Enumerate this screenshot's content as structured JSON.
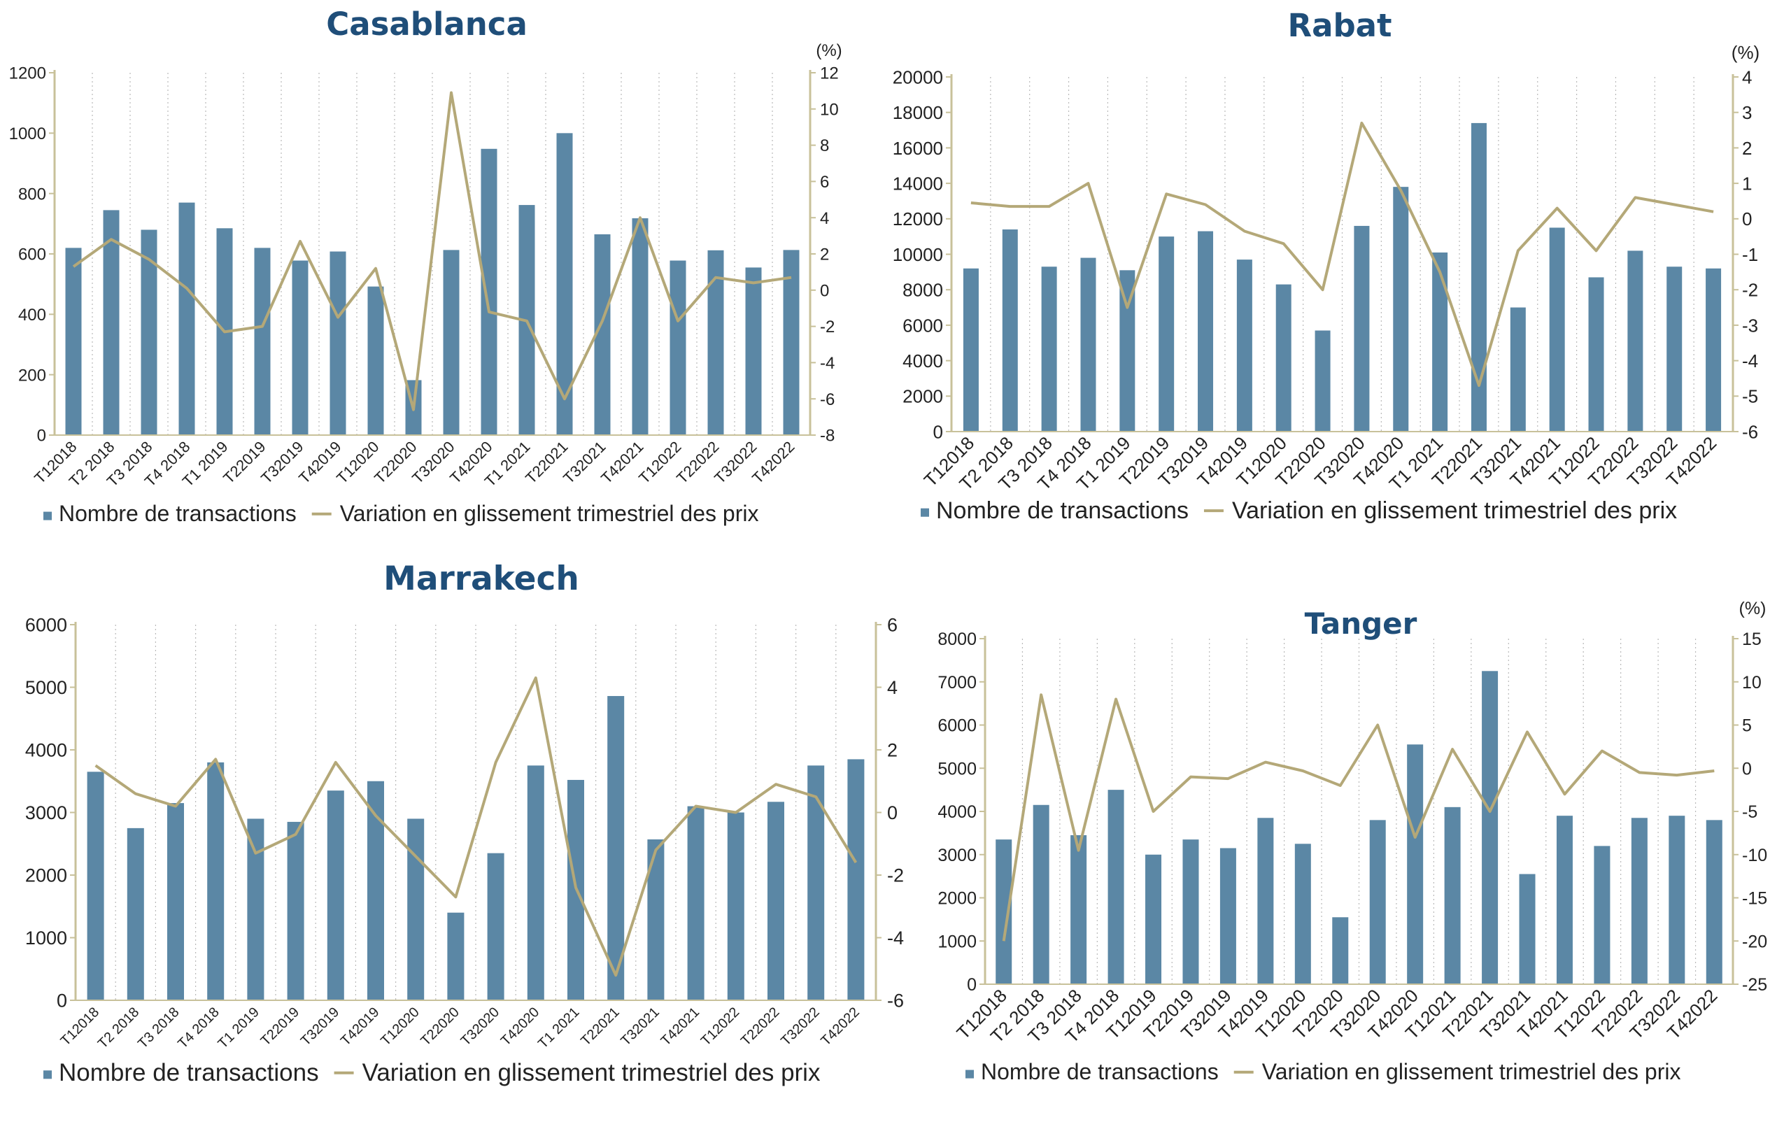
{
  "colors": {
    "bars": "#5b87a5",
    "line": "#b4a878",
    "axis": "#c8c19a",
    "grid": "#b9b9b9",
    "title": "#1f4e79"
  },
  "legend": {
    "bars": "Nombre de transactions",
    "line": "Variation en glissement trimestriel des prix"
  },
  "chart_data": [
    {
      "type": "bar",
      "title": "Casablanca",
      "categories": [
        "T12018",
        "T2 2018",
        "T3 2018",
        "T4 2018",
        "T1 2019",
        "T22019",
        "T32019",
        "T42019",
        "T12020",
        "T22020",
        "T32020",
        "T42020",
        "T1 2021",
        "T22021",
        "T32021",
        "T42021",
        "T12022",
        "T22022",
        "T32022",
        "T42022"
      ],
      "series": [
        {
          "name": "Nombre de transactions",
          "type": "bar",
          "axis": "left",
          "values": [
            620,
            745,
            680,
            770,
            685,
            620,
            578,
            608,
            492,
            182,
            613,
            948,
            762,
            1000,
            665,
            718,
            578,
            612,
            555,
            613
          ]
        },
        {
          "name": "Variation en glissement trimestriel des prix",
          "type": "line",
          "axis": "right",
          "values": [
            1.3,
            2.8,
            1.7,
            0.1,
            -2.3,
            -2.0,
            2.7,
            -1.5,
            1.2,
            -6.6,
            10.9,
            -1.2,
            -1.7,
            -6.0,
            -1.7,
            4.0,
            -1.7,
            0.7,
            0.4,
            0.7
          ]
        }
      ],
      "ylim": [
        0,
        1200
      ],
      "yticks": [
        "0",
        "200",
        "400",
        "600",
        "800",
        "1000",
        "1200"
      ],
      "y2lim": [
        -8,
        12
      ],
      "y2ticks": [
        "-8",
        "-6",
        "-4",
        "-2",
        "0",
        "2",
        "4",
        "6",
        "8",
        "10",
        "12"
      ],
      "y2unit": "(%)",
      "grid": true,
      "legend_position": "bottom"
    },
    {
      "type": "bar",
      "title": "Rabat",
      "categories": [
        "T12018",
        "T2 2018",
        "T3 2018",
        "T4 2018",
        "T1 2019",
        "T22019",
        "T32019",
        "T42019",
        "T12020",
        "T22020",
        "T32020",
        "T42020",
        "T1 2021",
        "T22021",
        "T32021",
        "T42021",
        "T12022",
        "T22022",
        "T32022",
        "T42022"
      ],
      "series": [
        {
          "name": "Nombre de transactions",
          "type": "bar",
          "axis": "left",
          "values": [
            9200,
            11400,
            9300,
            9800,
            9100,
            11000,
            11300,
            9700,
            8300,
            5700,
            11600,
            13800,
            10100,
            17400,
            7000,
            11500,
            8700,
            10200,
            9300,
            9200
          ]
        },
        {
          "name": "Variation en glissement trimestriel des prix",
          "type": "line",
          "axis": "right",
          "values": [
            0.45,
            0.35,
            0.35,
            1.0,
            -2.5,
            0.7,
            0.4,
            -0.35,
            -0.7,
            -2.0,
            2.7,
            0.8,
            -1.5,
            -4.7,
            -0.9,
            0.3,
            -0.9,
            0.6,
            0.4,
            0.2
          ]
        }
      ],
      "ylim": [
        0,
        20000
      ],
      "yticks": [
        "0",
        "2000",
        "4000",
        "6000",
        "8000",
        "10000",
        "12000",
        "14000",
        "16000",
        "18000",
        "20000"
      ],
      "y2lim": [
        -6,
        4
      ],
      "y2ticks": [
        "-6",
        "-5",
        "-4",
        "-3",
        "-2",
        "-1",
        "0",
        "1",
        "2",
        "3",
        "4"
      ],
      "y2unit": "(%)",
      "grid": true,
      "legend_position": "bottom"
    },
    {
      "type": "bar",
      "title": "Marrakech",
      "categories": [
        "T12018",
        "T2 2018",
        "T3 2018",
        "T4 2018",
        "T1 2019",
        "T22019",
        "T32019",
        "T42019",
        "T12020",
        "T22020",
        "T32020",
        "T42020",
        "T1 2021",
        "T22021",
        "T32021",
        "T42021",
        "T12022",
        "T22022",
        "T32022",
        "T42022"
      ],
      "series": [
        {
          "name": "Nombre de transactions",
          "type": "bar",
          "axis": "left",
          "values": [
            3650,
            2750,
            3150,
            3800,
            2900,
            2850,
            3350,
            3500,
            2900,
            1400,
            2350,
            3750,
            3520,
            4860,
            2570,
            3100,
            3000,
            3170,
            3750,
            3850
          ]
        },
        {
          "name": "Variation en glissement trimestriel des prix",
          "type": "line",
          "axis": "right",
          "values": [
            1.5,
            0.6,
            0.2,
            1.7,
            -1.3,
            -0.7,
            1.6,
            -0.1,
            -1.4,
            -2.7,
            1.6,
            4.3,
            -2.4,
            -5.2,
            -1.2,
            0.2,
            0.0,
            0.9,
            0.5,
            -1.6
          ]
        }
      ],
      "ylim": [
        0,
        6000
      ],
      "yticks": [
        "0",
        "1000",
        "2000",
        "3000",
        "4000",
        "5000",
        "6000"
      ],
      "y2lim": [
        -6,
        6
      ],
      "y2ticks": [
        "-6",
        "-4",
        "-2",
        "0",
        "2",
        "4",
        "6"
      ],
      "grid": true,
      "legend_position": "bottom"
    },
    {
      "type": "bar",
      "title": "Tanger",
      "categories": [
        "T12018",
        "T2 2018",
        "T3 2018",
        "T4 2018",
        "T12019",
        "T22019",
        "T32019",
        "T42019",
        "T12020",
        "T22020",
        "T32020",
        "T42020",
        "T12021",
        "T22021",
        "T32021",
        "T42021",
        "T12022",
        "T22022",
        "T32022",
        "T42022"
      ],
      "series": [
        {
          "name": "Nombre de transactions",
          "type": "bar",
          "axis": "left",
          "values": [
            3350,
            4150,
            3450,
            4500,
            3000,
            3350,
            3150,
            3850,
            3250,
            1550,
            3800,
            5550,
            4100,
            7250,
            2550,
            3900,
            3200,
            3850,
            3900,
            3800
          ]
        },
        {
          "name": "Variation en glissement trimestriel des prix",
          "type": "line",
          "axis": "right",
          "values": [
            -20,
            8.5,
            -9.5,
            8,
            -5,
            -1,
            -1.2,
            0.7,
            -0.3,
            -2,
            5,
            -8,
            2.2,
            -5,
            4.2,
            -3,
            2,
            -0.5,
            -0.8,
            -0.3
          ]
        }
      ],
      "ylim": [
        0,
        8000
      ],
      "yticks": [
        "0",
        "1000",
        "2000",
        "3000",
        "4000",
        "5000",
        "6000",
        "7000",
        "8000"
      ],
      "y2lim": [
        -25,
        15
      ],
      "y2ticks": [
        "-25",
        "-20",
        "-15",
        "-10",
        "-5",
        "0",
        "5",
        "10",
        "15"
      ],
      "y2unit": "(%)",
      "grid": true,
      "legend_position": "bottom"
    }
  ]
}
